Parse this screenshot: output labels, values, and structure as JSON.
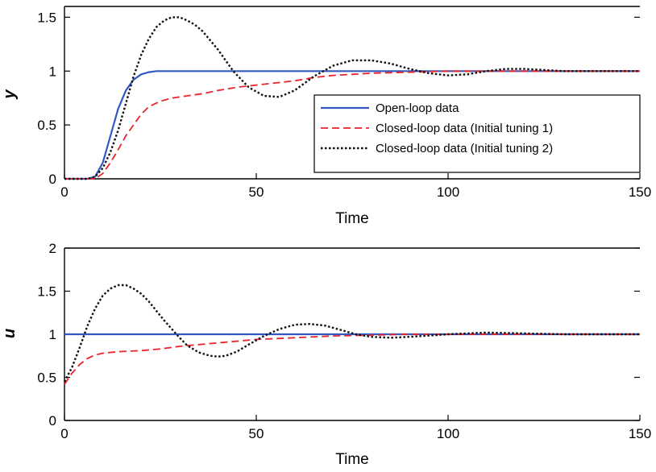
{
  "chart_data": [
    {
      "type": "line",
      "xlabel": "Time",
      "ylabel": "y",
      "xlim": [
        0,
        150
      ],
      "ylim": [
        0,
        1.6
      ],
      "xticks": [
        "0",
        "50",
        "100",
        "150"
      ],
      "yticks": [
        "0",
        "0.5",
        "1",
        "1.5"
      ],
      "xtick_values": [
        0,
        50,
        100,
        150
      ],
      "ytick_values": [
        0,
        0.5,
        1,
        1.5
      ],
      "legend_position": "lower-right",
      "series": [
        {
          "name": "Open-loop data",
          "color": "#3358c4",
          "style": "solid",
          "x": [
            0,
            6,
            8,
            10,
            12,
            14,
            16,
            18,
            20,
            22,
            24,
            26,
            150
          ],
          "y": [
            0,
            0,
            0.02,
            0.15,
            0.4,
            0.65,
            0.82,
            0.92,
            0.97,
            0.99,
            1.0,
            1.0,
            1.0
          ]
        },
        {
          "name": "Closed-loop data (Initial tuning 1)",
          "color": "#e8242d",
          "style": "dashed",
          "x": [
            0,
            8,
            10,
            12,
            14,
            16,
            18,
            20,
            22,
            25,
            28,
            32,
            36,
            40,
            45,
            50,
            55,
            60,
            65,
            70,
            75,
            80,
            90,
            100,
            150
          ],
          "y": [
            0,
            0,
            0.05,
            0.15,
            0.27,
            0.4,
            0.5,
            0.6,
            0.67,
            0.72,
            0.75,
            0.77,
            0.79,
            0.82,
            0.85,
            0.87,
            0.89,
            0.91,
            0.94,
            0.96,
            0.97,
            0.98,
            0.99,
            1.0,
            1.0
          ]
        },
        {
          "name": "Closed-loop data (Initial tuning 2)",
          "color": "#111111",
          "style": "dotted",
          "x": [
            0,
            6,
            8,
            10,
            12,
            14,
            16,
            18,
            20,
            22,
            24,
            26,
            28,
            30,
            32,
            34,
            36,
            40,
            44,
            48,
            52,
            56,
            60,
            65,
            70,
            75,
            80,
            85,
            90,
            95,
            100,
            105,
            110,
            115,
            120,
            125,
            130,
            140,
            150
          ],
          "y": [
            0,
            0,
            0.02,
            0.1,
            0.25,
            0.45,
            0.7,
            0.95,
            1.15,
            1.3,
            1.41,
            1.47,
            1.5,
            1.5,
            1.47,
            1.43,
            1.37,
            1.2,
            1.0,
            0.85,
            0.77,
            0.76,
            0.82,
            0.95,
            1.05,
            1.1,
            1.1,
            1.07,
            1.02,
            0.98,
            0.96,
            0.97,
            1.0,
            1.02,
            1.02,
            1.01,
            1.0,
            1.0,
            1.0
          ]
        }
      ]
    },
    {
      "type": "line",
      "xlabel": "Time",
      "ylabel": "u",
      "xlim": [
        0,
        150
      ],
      "ylim": [
        0,
        2
      ],
      "xticks": [
        "0",
        "50",
        "100",
        "150"
      ],
      "yticks": [
        "0",
        "0.5",
        "1",
        "1.5",
        "2"
      ],
      "xtick_values": [
        0,
        50,
        100,
        150
      ],
      "ytick_values": [
        0,
        0.5,
        1,
        1.5,
        2
      ],
      "series": [
        {
          "name": "Open-loop data",
          "color": "#3358c4",
          "style": "solid",
          "x": [
            0,
            150
          ],
          "y": [
            1.0,
            1.0
          ]
        },
        {
          "name": "Closed-loop data (Initial tuning 1)",
          "color": "#e8242d",
          "style": "dashed",
          "x": [
            0,
            2,
            4,
            6,
            8,
            10,
            12,
            15,
            20,
            25,
            30,
            35,
            40,
            45,
            50,
            55,
            60,
            65,
            70,
            80,
            90,
            100,
            150
          ],
          "y": [
            0.42,
            0.55,
            0.65,
            0.72,
            0.76,
            0.78,
            0.79,
            0.8,
            0.81,
            0.83,
            0.86,
            0.88,
            0.9,
            0.92,
            0.94,
            0.95,
            0.96,
            0.97,
            0.98,
            0.99,
            1.0,
            1.0,
            1.0
          ]
        },
        {
          "name": "Closed-loop data (Initial tuning 2)",
          "color": "#111111",
          "style": "dotted",
          "x": [
            0,
            2,
            4,
            6,
            8,
            10,
            12,
            14,
            16,
            18,
            20,
            22,
            24,
            26,
            28,
            30,
            32,
            35,
            38,
            40,
            42,
            45,
            48,
            52,
            56,
            60,
            64,
            68,
            72,
            76,
            80,
            85,
            90,
            100,
            110,
            120,
            130,
            150
          ],
          "y": [
            0.45,
            0.62,
            0.85,
            1.1,
            1.3,
            1.45,
            1.53,
            1.57,
            1.57,
            1.53,
            1.47,
            1.38,
            1.27,
            1.16,
            1.06,
            0.96,
            0.87,
            0.79,
            0.75,
            0.74,
            0.75,
            0.8,
            0.88,
            0.98,
            1.06,
            1.11,
            1.12,
            1.1,
            1.05,
            1.0,
            0.97,
            0.96,
            0.97,
            1.0,
            1.02,
            1.01,
            1.0,
            1.0
          ]
        }
      ]
    }
  ]
}
